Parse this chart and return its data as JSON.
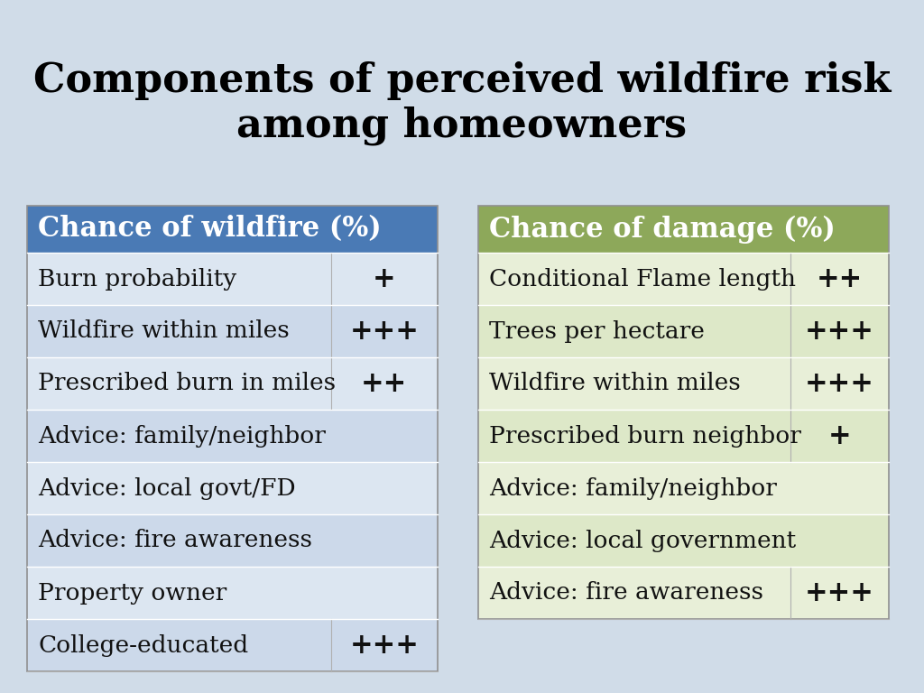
{
  "title": "Components of perceived wildfire risk\namong homeowners",
  "title_fontsize": 32,
  "background_color": "#d0dce8",
  "left_header": "Chance of wildfire (%)",
  "right_header": "Chance of damage (%)",
  "left_header_bg": "#4a7ab5",
  "right_header_bg": "#8da85a",
  "header_text_color": "#ffffff",
  "left_rows": [
    [
      "Burn probability",
      "+"
    ],
    [
      "Wildfire within miles",
      "+++"
    ],
    [
      "Prescribed burn in miles",
      "++"
    ],
    [
      "Advice: family/neighbor",
      ""
    ],
    [
      "Advice: local govt/FD",
      ""
    ],
    [
      "Advice: fire awareness",
      ""
    ],
    [
      "Property owner",
      ""
    ],
    [
      "College-educated",
      "+++"
    ]
  ],
  "right_rows": [
    [
      "Conditional Flame length",
      "++"
    ],
    [
      "Trees per hectare",
      "+++"
    ],
    [
      "Wildfire within miles",
      "+++"
    ],
    [
      "Prescribed burn neighbor",
      "+"
    ],
    [
      "Advice: family/neighbor",
      ""
    ],
    [
      "Advice: local government",
      ""
    ],
    [
      "Advice: fire awareness",
      "+++"
    ]
  ],
  "left_row_colors": [
    "#dce6f1",
    "#ccd9ea",
    "#dce6f1",
    "#ccd9ea",
    "#dce6f1",
    "#ccd9ea",
    "#dce6f1",
    "#ccd9ea"
  ],
  "right_row_colors": [
    "#e8efd8",
    "#dde8c8",
    "#e8efd8",
    "#dde8c8",
    "#e8efd8",
    "#dde8c8",
    "#e8efd8"
  ],
  "row_text_color": "#111111",
  "cell_fontsize": 19,
  "header_fontsize": 22,
  "sign_fontsize": 22
}
